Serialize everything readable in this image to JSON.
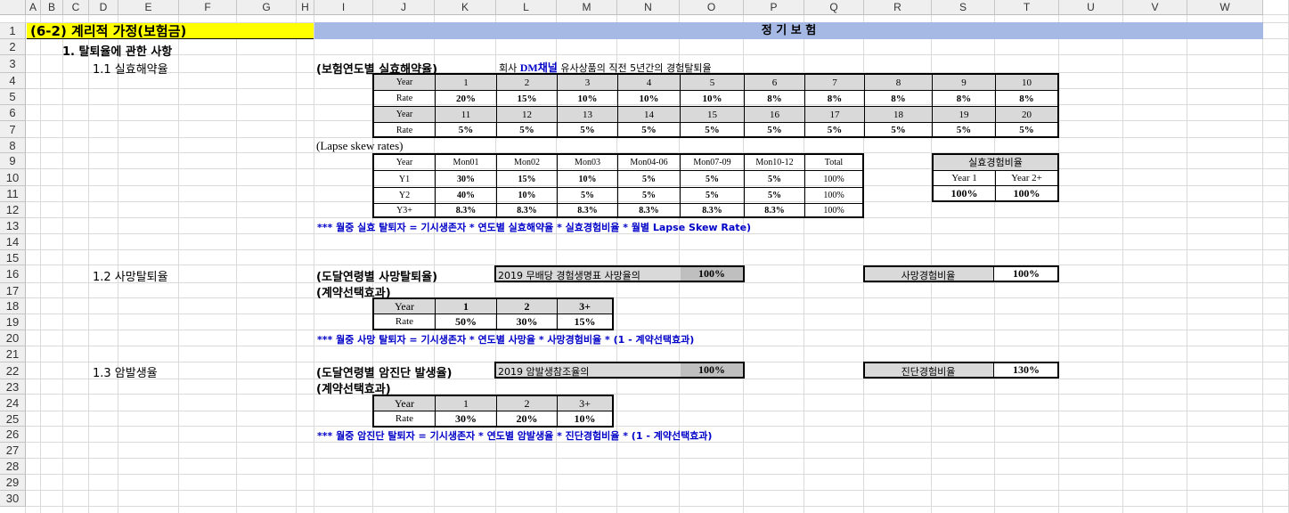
{
  "colors": {
    "title_bg": "#ffff00",
    "banner_bg": "#a6b9e4",
    "gray_fill": "#d9d9d9",
    "dark_fill": "#bfbfbf",
    "note_color": "#0000c8"
  },
  "columns": [
    "A",
    "B",
    "C",
    "D",
    "E",
    "F",
    "G",
    "H",
    "I",
    "J",
    "K",
    "L",
    "M",
    "N",
    "O",
    "P",
    "Q",
    "R",
    "S",
    "T",
    "U",
    "V",
    "W"
  ],
  "rows": [
    "1",
    "2",
    "3",
    "4",
    "5",
    "6",
    "7",
    "8",
    "9",
    "10",
    "11",
    "12",
    "13",
    "14",
    "15",
    "16",
    "17",
    "18",
    "19",
    "20",
    "21",
    "22",
    "23",
    "24",
    "25",
    "26",
    "27",
    "28",
    "29",
    "30"
  ],
  "title": "(6-2) 계리적 가정(보험금)",
  "banner": "정 기 보 험",
  "section1": "1. 탈퇴율에 관한 사항",
  "sub_lapse": "1.1 실효해약율",
  "sub_death": "1.2 사망탈퇴율",
  "sub_cancer": "1.3 암발생율",
  "lapse": {
    "heading": "(보험연도별 실효해약율)",
    "note_prefix": "회사 ",
    "note_channel": "DM채널",
    "note_suffix": " 유사상품의 직전 5년간의 경험탈퇴율",
    "row_year_label": "Year",
    "row_rate_label": "Rate",
    "years_1": [
      "1",
      "2",
      "3",
      "4",
      "5",
      "6",
      "7",
      "8",
      "9",
      "10"
    ],
    "rates_1": [
      "20%",
      "15%",
      "10%",
      "10%",
      "10%",
      "8%",
      "8%",
      "8%",
      "8%",
      "8%"
    ],
    "years_2": [
      "11",
      "12",
      "13",
      "14",
      "15",
      "16",
      "17",
      "18",
      "19",
      "20"
    ],
    "rates_2": [
      "5%",
      "5%",
      "5%",
      "5%",
      "5%",
      "5%",
      "5%",
      "5%",
      "5%",
      "5%"
    ]
  },
  "skew": {
    "heading": "(Lapse skew rates)",
    "headers": [
      "Year",
      "Mon01",
      "Mon02",
      "Mon03",
      "Mon04-06",
      "Mon07-09",
      "Mon10-12",
      "Total"
    ],
    "rows": [
      [
        "Y1",
        "30%",
        "15%",
        "10%",
        "5%",
        "5%",
        "5%",
        "100%"
      ],
      [
        "Y2",
        "40%",
        "10%",
        "5%",
        "5%",
        "5%",
        "5%",
        "100%"
      ],
      [
        "Y3+",
        "8.3%",
        "8.3%",
        "8.3%",
        "8.3%",
        "8.3%",
        "8.3%",
        "100%"
      ]
    ]
  },
  "lapse_exp": {
    "title": "실효경험비율",
    "headers": [
      "Year 1",
      "Year 2+"
    ],
    "values": [
      "100%",
      "100%"
    ]
  },
  "note_lapse": "*** 월중 실효 탈퇴자 = 기시생존자 * 연도별 실효해약율 * 실효경험비율 * 월별 Lapse Skew Rate)",
  "death": {
    "heading": "(도달연령별 사망탈퇴율)",
    "base_label": "2019 무배당 경험생명표 사망율의",
    "base_value": "100%",
    "exp_label": "사망경험비율",
    "exp_value": "100%",
    "select_heading": "(계약선택효과)",
    "row_year_label": "Year",
    "row_rate_label": "Rate",
    "years": [
      "1",
      "2",
      "3+"
    ],
    "rates": [
      "50%",
      "30%",
      "15%"
    ]
  },
  "note_death": "*** 월중 사망 탈퇴자 = 기시생존자 * 연도별 사망율 * 사망경험비율 * (1 - 계약선택효과)",
  "cancer": {
    "heading": "(도달연령별 암진단 발생율)",
    "base_label": "2019 암발생참조율의",
    "base_value": "100%",
    "exp_label": "진단경험비율",
    "exp_value": "130%",
    "select_heading": "(계약선택효과)",
    "row_year_label": "Year",
    "row_rate_label": "Rate",
    "years": [
      "1",
      "2",
      "3+"
    ],
    "rates": [
      "30%",
      "20%",
      "10%"
    ]
  },
  "note_cancer": "*** 월중 암진단 탈퇴자 = 기시생존자 * 연도별 암발생율 * 진단경험비율 * (1 - 계약선택효과)"
}
